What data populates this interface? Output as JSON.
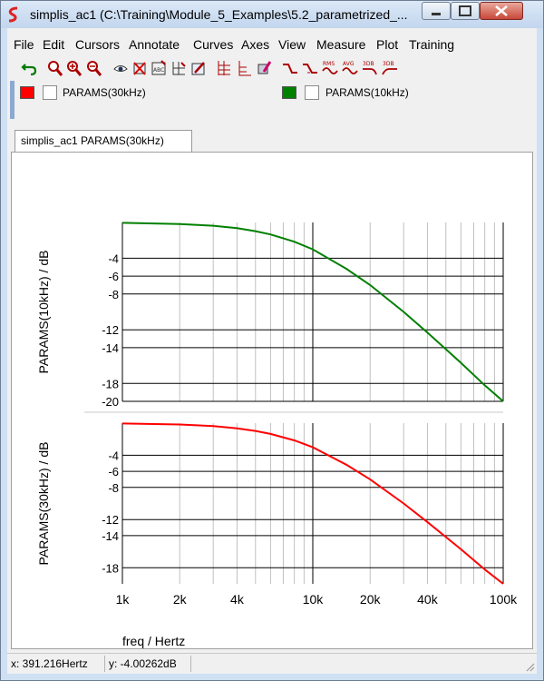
{
  "window": {
    "title": "simplis_ac1 (C:\\Training\\Module_5_Examples\\5.2_parametrized_..."
  },
  "menu": [
    "File",
    "Edit",
    "Cursors",
    "Annotate",
    "Curves",
    "Axes",
    "View",
    "Measure",
    "Plot",
    "Training"
  ],
  "toolbar_icons": [
    "undo-icon",
    "zoom-fit-icon",
    "zoom-in-icon",
    "zoom-out-icon",
    "eye-icon",
    "delete-curve-icon",
    "abc-icon",
    "new-grid-icon",
    "edit-icon",
    "stack-grid-icon",
    "separate-axis-icon",
    "paint-icon",
    "rise-icon",
    "fall-icon",
    "rms-icon",
    "avg-icon",
    "3db-high-icon",
    "3db-low-icon"
  ],
  "toolbar_text": {
    "rms": "RMS",
    "avg": "AVG",
    "db3a": "3DB",
    "db3b": "3DB"
  },
  "legend": [
    {
      "label": "PARAMS(30kHz)",
      "color": "#ff0000"
    },
    {
      "label": "PARAMS(10kHz)",
      "color": "#008000"
    }
  ],
  "tab": {
    "label": "simplis_ac1 PARAMS(30kHz)"
  },
  "chart_data": [
    {
      "type": "line",
      "ylabel": "PARAMS(10kHz) / dB",
      "yticks": [
        "-4",
        "-6",
        "-8",
        "-12",
        "-14",
        "-18",
        "-20"
      ],
      "ytick_values": [
        -4,
        -6,
        -8,
        -12,
        -14,
        -18,
        -20
      ],
      "ylim": [
        -20,
        0
      ],
      "x_scale": "log",
      "xlim": [
        1000,
        100000
      ],
      "grid": true,
      "series": [
        {
          "name": "PARAMS(10kHz)",
          "color": "#008000",
          "x": [
            1000,
            2000,
            3000,
            4000,
            5000,
            6000,
            8000,
            10000,
            15000,
            20000,
            30000,
            40000,
            60000,
            80000,
            100000
          ],
          "y": [
            -0.04,
            -0.17,
            -0.37,
            -0.64,
            -0.97,
            -1.34,
            -2.15,
            -3.01,
            -5.18,
            -6.99,
            -10.0,
            -12.3,
            -15.7,
            -18.2,
            -20.0
          ]
        }
      ]
    },
    {
      "type": "line",
      "ylabel": "PARAMS(30kHz) / dB",
      "yticks": [
        "-4",
        "-6",
        "-8",
        "-12",
        "-14",
        "-18"
      ],
      "ytick_values": [
        -4,
        -6,
        -8,
        -12,
        -14,
        -18
      ],
      "ylim": [
        -20,
        0
      ],
      "x_scale": "log",
      "xlim": [
        1000,
        100000
      ],
      "xticks": [
        "1k",
        "2k",
        "4k",
        "10k",
        "20k",
        "40k",
        "100k"
      ],
      "xtick_values": [
        1000,
        2000,
        4000,
        10000,
        20000,
        40000,
        100000
      ],
      "xlabel": "freq / Hertz",
      "grid": true,
      "series": [
        {
          "name": "PARAMS(30kHz)",
          "color": "#ff0000",
          "x": [
            1000,
            2000,
            3000,
            4000,
            5000,
            6000,
            8000,
            10000,
            15000,
            20000,
            30000,
            40000,
            60000,
            80000,
            100000
          ],
          "y": [
            -0.04,
            -0.17,
            -0.37,
            -0.64,
            -0.97,
            -1.34,
            -2.15,
            -3.01,
            -5.18,
            -6.99,
            -10.0,
            -12.3,
            -15.7,
            -18.2,
            -20.0
          ]
        }
      ]
    }
  ],
  "status": {
    "x": "x: 391.216Hertz",
    "y": "y: -4.00262dB"
  }
}
